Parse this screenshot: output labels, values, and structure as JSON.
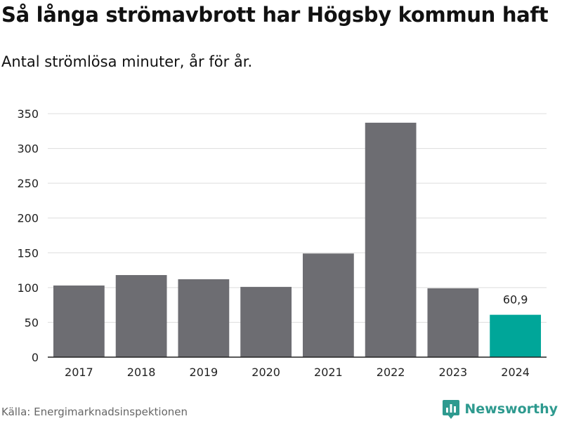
{
  "title": "Så långa strömavbrott har Högsby kommun haft",
  "subtitle": "Antal strömlösa minuter, år för år.",
  "source": "Källa: Energimarknadsinspektionen",
  "brand": "Newsworthy",
  "colors": {
    "bar": "#6d6d72",
    "highlight": "#00a699",
    "grid": "#dddddd",
    "axis": "#222222",
    "brand": "#2e9a8f"
  },
  "chart_data": {
    "type": "bar",
    "categories": [
      "2017",
      "2018",
      "2019",
      "2020",
      "2021",
      "2022",
      "2023",
      "2024"
    ],
    "values": [
      103,
      118,
      112,
      101,
      149,
      337,
      99,
      60.9
    ],
    "highlight_index": 7,
    "data_labels": {
      "7": "60,9"
    },
    "ylim": [
      0,
      350
    ],
    "yticks": [
      0,
      50,
      100,
      150,
      200,
      250,
      300,
      350
    ],
    "grid": true,
    "xlabel": "",
    "ylabel": ""
  }
}
